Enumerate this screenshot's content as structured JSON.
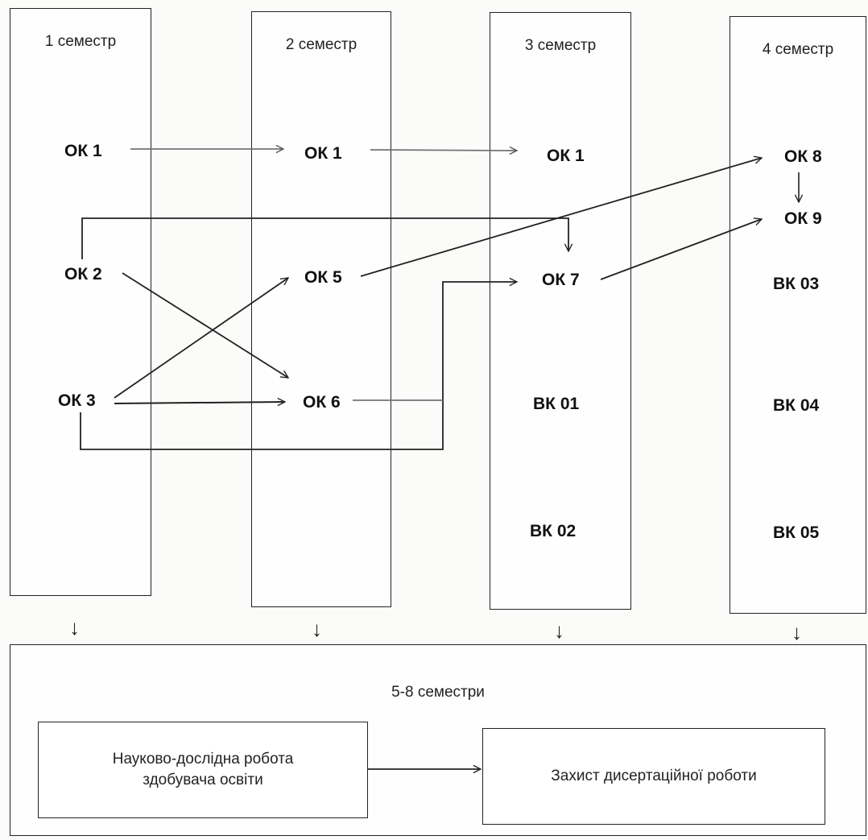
{
  "columns": [
    {
      "title": "1 семестр",
      "nodes": [
        "ОК 1",
        "ОК 2",
        "ОК 3"
      ]
    },
    {
      "title": "2 семестр",
      "nodes": [
        "ОК 1",
        "ОК 5",
        "ОК 6"
      ]
    },
    {
      "title": "3 семестр",
      "nodes": [
        "ОК 1",
        "ОК 7",
        "ВК 01",
        "ВК 02"
      ]
    },
    {
      "title": "4 семестр",
      "nodes": [
        "ОК 8",
        "ОК 9",
        "ВК 03",
        "ВК 04",
        "ВК 05"
      ]
    }
  ],
  "bottom": {
    "title": "5-8 семестри",
    "research_box": "Науково-дослідна робота здобувача освіти",
    "research_line1": "Науково-дослідна робота",
    "research_line2": "здобувача освіти",
    "defense_box": "Захист дисертаційної роботи"
  },
  "edges": [
    [
      "ОК 1 (1 семестр)",
      "ОК 1 (2 семестр)"
    ],
    [
      "ОК 1 (2 семестр)",
      "ОК 1 (3 семестр)"
    ],
    [
      "ОК 2",
      "ОК 7"
    ],
    [
      "ОК 2",
      "ОК 6"
    ],
    [
      "ОК 3",
      "ОК 5"
    ],
    [
      "ОК 3",
      "ОК 6"
    ],
    [
      "ОК 3",
      "ОК 7"
    ],
    [
      "ОК 6",
      "ОК 7"
    ],
    [
      "ОК 5",
      "ОК 8"
    ],
    [
      "ОК 7",
      "ОК 9"
    ],
    [
      "ОК 8",
      "ОК 9"
    ],
    [
      "1 семестр",
      "5-8 семестри"
    ],
    [
      "2 семестр",
      "5-8 семестри"
    ],
    [
      "3 семестр",
      "5-8 семестри"
    ],
    [
      "4 семестр",
      "5-8 семестри"
    ],
    [
      "Науково-дослідна робота здобувача освіти",
      "Захист дисертаційної роботи"
    ]
  ],
  "colors": {
    "line": "#222222",
    "gray_line": "#6f7478"
  }
}
